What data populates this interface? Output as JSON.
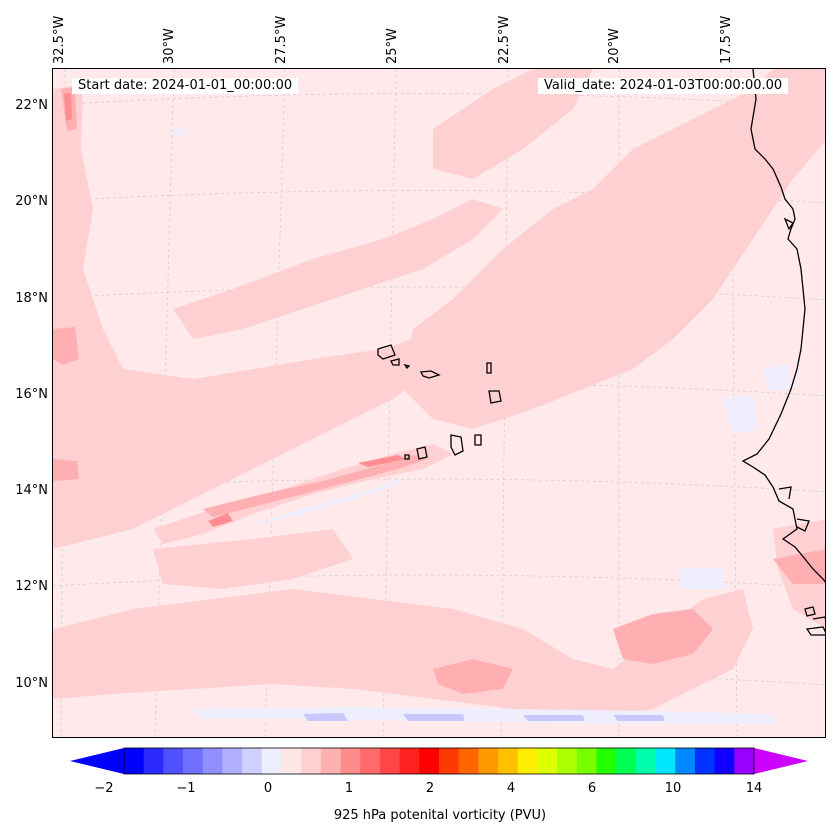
{
  "map": {
    "start_date": "Start date: 2024-01-01_00:00:00",
    "valid_date": "Valid_date: 2024-01-03T00:00:00.00",
    "lon_labels": [
      "32.5°W",
      "30°W",
      "27.5°W",
      "25°W",
      "22.5°W",
      "20°W",
      "17.5°W"
    ],
    "lat_labels": [
      "22°N",
      "20°N",
      "18°N",
      "16°N",
      "14°N",
      "12°N",
      "10°N"
    ],
    "field_colors": {
      "background": "#ffe9ea",
      "level_1": "#ffd0d2",
      "level_2": "#ffafb2",
      "level_3": "#ff8c90",
      "negative_1": "#eeeeff",
      "negative_2": "#c8c8ff",
      "coastline": "#000000"
    }
  },
  "colorbar": {
    "title": "925 hPa potenital vorticity (PVU)",
    "tick_labels": [
      "−2",
      "−1",
      "0",
      "1",
      "2",
      "4",
      "6",
      "10",
      "14"
    ],
    "colors": [
      "#0000ff",
      "#2a2aff",
      "#5050ff",
      "#7070ff",
      "#8f8fff",
      "#b0b0ff",
      "#d0d0ff",
      "#eeeeff",
      "#ffe6e6",
      "#ffd0d0",
      "#ffb0b0",
      "#ff8c8c",
      "#ff6a6a",
      "#ff4646",
      "#ff2020",
      "#ff0000",
      "#ff3a00",
      "#ff6600",
      "#ff9900",
      "#ffc000",
      "#ffee00",
      "#ddff00",
      "#aaff00",
      "#77ff00",
      "#22ff00",
      "#00ff55",
      "#00ffaa",
      "#00e6ff",
      "#0088ff",
      "#0033ff",
      "#1100ff",
      "#9900ff"
    ],
    "extend_low": "#0000ff",
    "extend_high": "#cc00ff"
  }
}
